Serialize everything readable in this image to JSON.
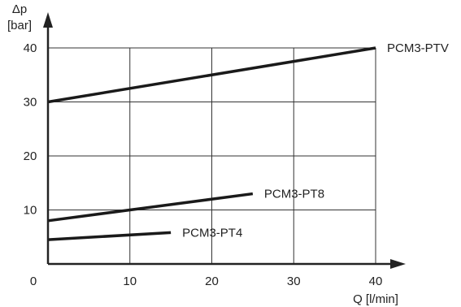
{
  "chart_data": {
    "type": "line",
    "ylabel_line1": "Δp",
    "ylabel_line2": "[bar]",
    "xlabel": "Q [l/min]",
    "xlim": [
      0,
      40
    ],
    "ylim": [
      0,
      40
    ],
    "x_ticks": [
      0,
      10,
      20,
      30,
      40
    ],
    "y_ticks": [
      10,
      20,
      30,
      40
    ],
    "grid": true,
    "series": [
      {
        "name": "PCM3-PTV",
        "x": [
          0,
          40
        ],
        "y": [
          30,
          40
        ]
      },
      {
        "name": "PCM3-PT8",
        "x": [
          0,
          25
        ],
        "y": [
          8,
          13
        ]
      },
      {
        "name": "PCM3-PT4",
        "x": [
          0,
          15
        ],
        "y": [
          4.5,
          5.8
        ]
      }
    ]
  },
  "colors": {
    "axis": "#222222",
    "grid": "#333333",
    "line": "#1a1a1a"
  }
}
